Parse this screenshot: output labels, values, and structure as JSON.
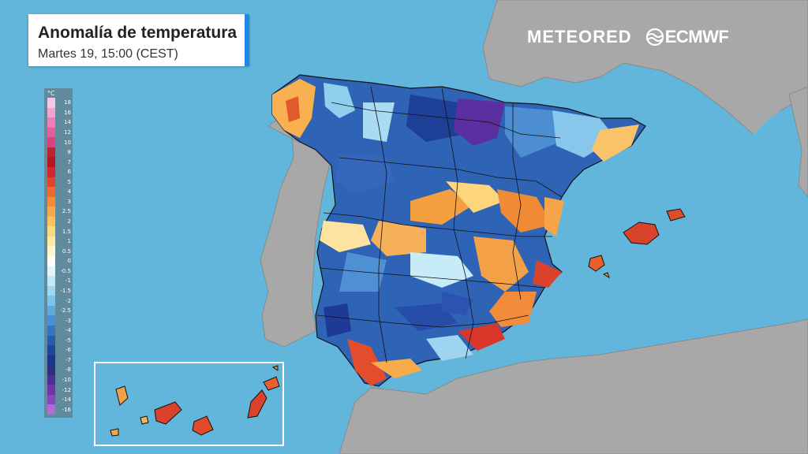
{
  "title": "Anomalía de temperatura",
  "subtitle": "Martes 19, 15:00 (CEST)",
  "brand": {
    "meteored": "METEORED",
    "ecmwf": "ECMWF"
  },
  "legend": {
    "unit": "°C",
    "labels": [
      "18",
      "16",
      "14",
      "12",
      "10",
      "8",
      "7",
      "6",
      "5",
      "4",
      "3",
      "2.5",
      "2",
      "1.5",
      "1",
      "0.5",
      "0",
      "-0.5",
      "-1",
      "-1.5",
      "-2",
      "-2.5",
      "-3",
      "-4",
      "-5",
      "-6",
      "-7",
      "-8",
      "-10",
      "-12",
      "-14",
      "-16"
    ],
    "colors": [
      "#f7c6e4",
      "#f2a3d0",
      "#ec7fba",
      "#e25f9e",
      "#d94480",
      "#c21f2f",
      "#b0182a",
      "#d0282c",
      "#e0432c",
      "#ec6a2e",
      "#f58b35",
      "#f8a846",
      "#fbc35e",
      "#fdd97c",
      "#fee9a3",
      "#fff6cf",
      "#ffffff",
      "#e4f4fb",
      "#c2e7f7",
      "#9fd6f0",
      "#7ec3e8",
      "#5fa9dd",
      "#4a8fd1",
      "#3673c1",
      "#2a5bb0",
      "#22459c",
      "#1d3589",
      "#2a2f80",
      "#4b2f93",
      "#6a36a8",
      "#8a45bd",
      "#b26ad6"
    ]
  },
  "colors": {
    "sea": "#62b6dc",
    "land": "#a6a6a6",
    "accent": "#1e88e5"
  }
}
